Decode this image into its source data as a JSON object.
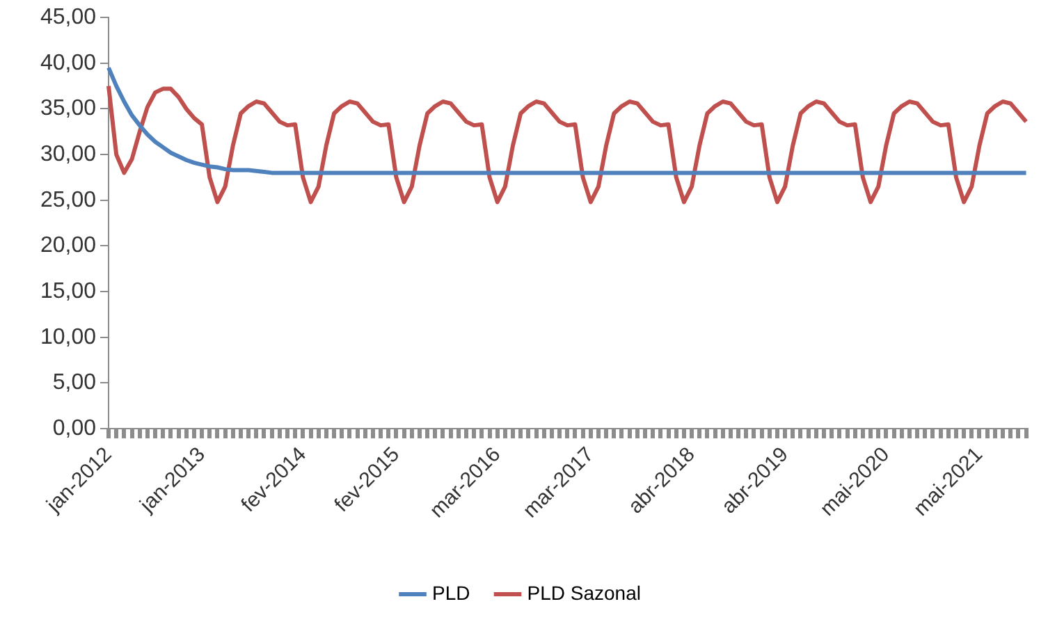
{
  "chart_data": {
    "type": "line",
    "categories": [
      "jan-2012",
      null,
      null,
      null,
      null,
      null,
      null,
      null,
      null,
      null,
      null,
      null,
      "jan-2013",
      null,
      null,
      null,
      null,
      null,
      null,
      null,
      null,
      null,
      null,
      null,
      null,
      "fev-2014",
      null,
      null,
      null,
      null,
      null,
      null,
      null,
      null,
      null,
      null,
      null,
      "fev-2015",
      null,
      null,
      null,
      null,
      null,
      null,
      null,
      null,
      null,
      null,
      null,
      null,
      "mar-2016",
      null,
      null,
      null,
      null,
      null,
      null,
      null,
      null,
      null,
      null,
      null,
      "mar-2017",
      null,
      null,
      null,
      null,
      null,
      null,
      null,
      null,
      null,
      null,
      null,
      null,
      "abr-2018",
      null,
      null,
      null,
      null,
      null,
      null,
      null,
      null,
      null,
      null,
      null,
      "abr-2019",
      null,
      null,
      null,
      null,
      null,
      null,
      null,
      null,
      null,
      null,
      null,
      null,
      "mai-2020",
      null,
      null,
      null,
      null,
      null,
      null,
      null,
      null,
      null,
      null,
      null,
      "mai-2021",
      null,
      null,
      null,
      null,
      null,
      null
    ],
    "series": [
      {
        "name": "PLD",
        "color": "#4f81bd",
        "values": [
          39.5,
          37.5,
          35.8,
          34.3,
          33.2,
          32.2,
          31.4,
          30.8,
          30.2,
          29.8,
          29.4,
          29.1,
          28.9,
          28.7,
          28.6,
          28.4,
          28.3,
          28.3,
          28.3,
          28.2,
          28.1,
          28,
          28,
          28,
          28,
          28,
          28,
          28,
          28,
          28,
          28,
          28,
          28,
          28,
          28,
          28,
          28,
          28,
          28,
          28,
          28,
          28,
          28,
          28,
          28,
          28,
          28,
          28,
          28,
          28,
          28,
          28,
          28,
          28,
          28,
          28,
          28,
          28,
          28,
          28,
          28,
          28,
          28,
          28,
          28,
          28,
          28,
          28,
          28,
          28,
          28,
          28,
          28,
          28,
          28,
          28,
          28,
          28,
          28,
          28,
          28,
          28,
          28,
          28,
          28,
          28,
          28,
          28,
          28,
          28,
          28,
          28,
          28,
          28,
          28,
          28,
          28,
          28,
          28,
          28,
          28,
          28,
          28,
          28,
          28,
          28,
          28,
          28,
          28,
          28,
          28,
          28,
          28,
          28,
          28,
          28,
          28,
          28,
          28
        ]
      },
      {
        "name": "PLD Sazonal",
        "color": "#c0504d",
        "values": [
          37.5,
          30,
          28,
          29.5,
          32.5,
          35.2,
          36.8,
          37.2,
          37.2,
          36.3,
          35,
          34,
          33.3,
          27.5,
          24.8,
          26.5,
          31,
          34.5,
          35.3,
          35.8,
          35.6,
          34.6,
          33.6,
          33.2,
          33.3,
          27.5,
          24.8,
          26.5,
          31,
          34.5,
          35.3,
          35.8,
          35.6,
          34.6,
          33.6,
          33.2,
          33.3,
          27.5,
          24.8,
          26.5,
          31,
          34.5,
          35.3,
          35.8,
          35.6,
          34.6,
          33.6,
          33.2,
          33.3,
          27.5,
          24.8,
          26.5,
          31,
          34.5,
          35.3,
          35.8,
          35.6,
          34.6,
          33.6,
          33.2,
          33.3,
          27.5,
          24.8,
          26.5,
          31,
          34.5,
          35.3,
          35.8,
          35.6,
          34.6,
          33.6,
          33.2,
          33.3,
          27.5,
          24.8,
          26.5,
          31,
          34.5,
          35.3,
          35.8,
          35.6,
          34.6,
          33.6,
          33.2,
          33.3,
          27.5,
          24.8,
          26.5,
          31,
          34.5,
          35.3,
          35.8,
          35.6,
          34.6,
          33.6,
          33.2,
          33.3,
          27.5,
          24.8,
          26.5,
          31,
          34.5,
          35.3,
          35.8,
          35.6,
          34.6,
          33.6,
          33.2,
          33.3,
          27.5,
          24.8,
          26.5,
          31,
          34.5,
          35.3,
          35.8,
          35.6,
          34.6,
          33.6
        ]
      }
    ],
    "ylim": [
      0,
      45
    ],
    "yticks": [
      {
        "value": 0,
        "label": "0,00"
      },
      {
        "value": 5,
        "label": "5,00"
      },
      {
        "value": 10,
        "label": "10,00"
      },
      {
        "value": 15,
        "label": "15,00"
      },
      {
        "value": 20,
        "label": "20,00"
      },
      {
        "value": 25,
        "label": "25,00"
      },
      {
        "value": 30,
        "label": "30,00"
      },
      {
        "value": 35,
        "label": "35,00"
      },
      {
        "value": 40,
        "label": "40,00"
      },
      {
        "value": 45,
        "label": "45,00"
      }
    ],
    "legend": "bottom",
    "grid": false,
    "marker": "none"
  }
}
